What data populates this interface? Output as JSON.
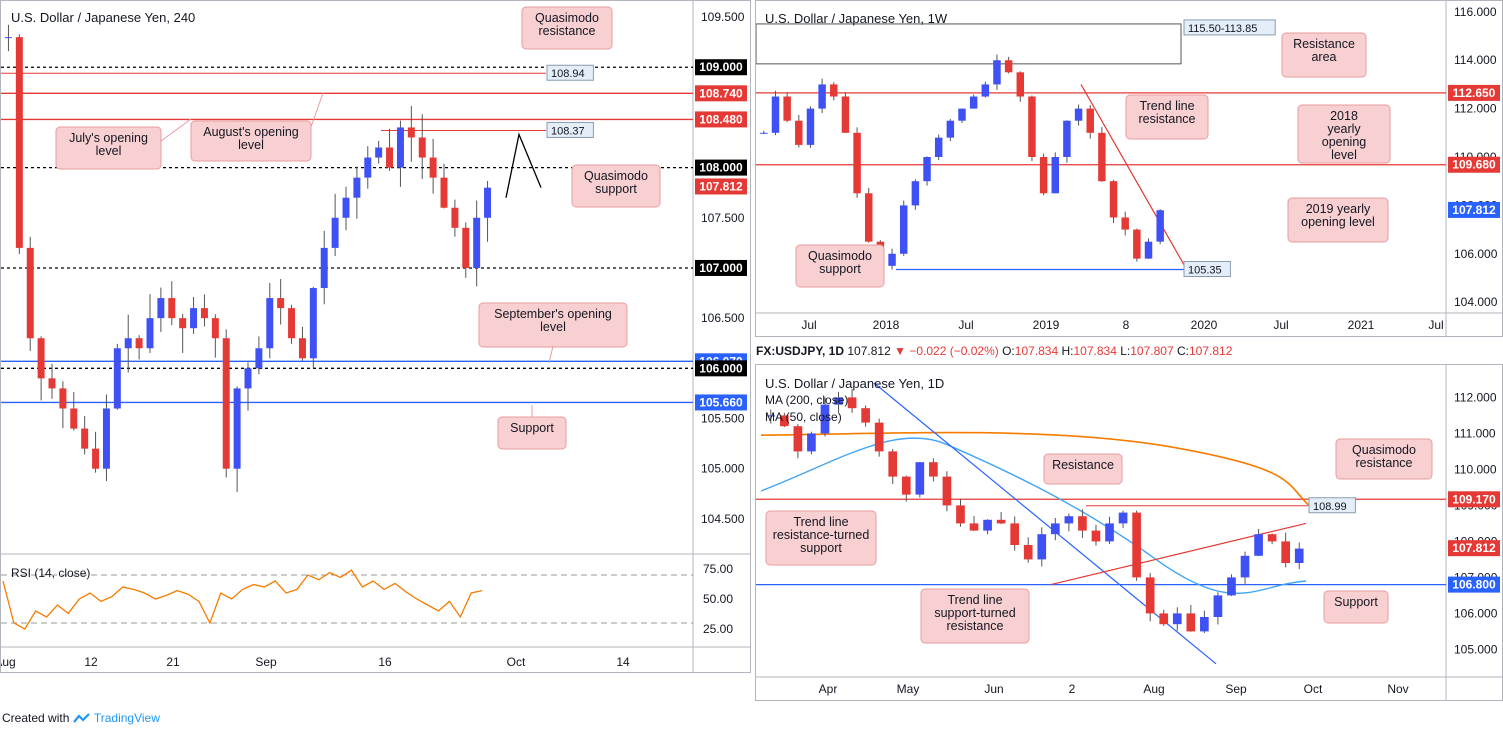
{
  "footer": {
    "created_with": "Created with",
    "brand": "TradingView"
  },
  "charts": {
    "h4": {
      "title": "U.S. Dollar / Japanese Yen, 240",
      "y_ticks": [
        "109.500",
        "109.000",
        "108.500",
        "108.000",
        "107.500",
        "107.000",
        "106.500",
        "106.000",
        "105.500",
        "105.000",
        "104.500"
      ],
      "x_ticks": [
        "Aug",
        "12",
        "21",
        "Sep",
        "16",
        "Oct",
        "14"
      ],
      "price_badges": [
        {
          "label": "109.000",
          "color": "#000000"
        },
        {
          "label": "108.740",
          "color": "#e53935"
        },
        {
          "label": "108.480",
          "color": "#e53935"
        },
        {
          "label": "108.000",
          "color": "#000000"
        },
        {
          "label": "107.812",
          "color": "#e53935"
        },
        {
          "label": "107.000",
          "color": "#000000"
        },
        {
          "label": "106.070",
          "color": "#2962ff"
        },
        {
          "label": "106.000",
          "color": "#000000"
        },
        {
          "label": "105.660",
          "color": "#2962ff"
        }
      ],
      "inline_labels": [
        "108.94",
        "108.37"
      ],
      "annotations": {
        "qm_resistance": "Quasimodo resistance",
        "july_open": "July's opening level",
        "aug_open": "August's opening level",
        "qm_support": "Quasimodo support",
        "sept_open": "September's opening level",
        "support": "Support"
      },
      "rsi": {
        "title": "RSI (14, close)",
        "ticks": [
          "75.00",
          "50.00",
          "25.00"
        ]
      }
    },
    "w1": {
      "title": "U.S. Dollar / Japanese Yen, 1W",
      "y_ticks": [
        "116.000",
        "114.000",
        "112.000",
        "110.000",
        "108.000",
        "106.000",
        "104.000"
      ],
      "x_ticks": [
        "Jul",
        "2018",
        "Jul",
        "2019",
        "8",
        "2020",
        "Jul",
        "2021",
        "Jul"
      ],
      "price_badges": [
        {
          "label": "112.650",
          "color": "#e53935"
        },
        {
          "label": "109.680",
          "color": "#e53935"
        },
        {
          "label": "107.812",
          "color": "#2962ff"
        }
      ],
      "inline_labels": [
        "115.50-113.85",
        "105.35"
      ],
      "annotations": {
        "resistance_area": "Resistance area",
        "trendline_res": "Trend line resistance",
        "y2018": "2018 yearly opening level",
        "y2019": "2019 yearly opening level",
        "qm_support": "Quasimodo support"
      }
    },
    "d1": {
      "title": "U.S. Dollar / Japanese Yen, 1D",
      "ma200": "MA (200, close)",
      "ma50": "MA (50, close)",
      "y_ticks": [
        "112.000",
        "111.000",
        "110.000",
        "109.000",
        "108.000",
        "107.000",
        "106.000",
        "105.000"
      ],
      "x_ticks": [
        "Apr",
        "May",
        "Jun",
        "2",
        "Aug",
        "Sep",
        "Oct",
        "Nov"
      ],
      "price_badges": [
        {
          "label": "109.170",
          "color": "#e53935"
        },
        {
          "label": "107.812",
          "color": "#e53935"
        },
        {
          "label": "106.800",
          "color": "#2962ff"
        }
      ],
      "inline_labels": [
        "108.99"
      ],
      "annotations": {
        "qm_resistance": "Quasimodo resistance",
        "resistance": "Resistance",
        "tl_res_sup": "Trend line resistance-turned support",
        "tl_sup_res": "Trend line support-turned resistance",
        "support": "Support"
      }
    }
  },
  "ohlc": {
    "symbol": "FX:USDJPY, 1D",
    "last": "107.812",
    "change": "−0.022 (−0.02%)",
    "open_label": "O:",
    "open": "107.834",
    "high_label": "H:",
    "high": "107.834",
    "low_label": "L:",
    "low": "107.807",
    "close_label": "C:",
    "close": "107.812"
  },
  "chart_data": [
    {
      "type": "candlestick",
      "title": "U.S. Dollar / Japanese Yen, 240",
      "ylim": [
        104.2,
        109.6
      ],
      "horizontal_levels": [
        109.0,
        108.94,
        108.74,
        108.48,
        108.37,
        108.0,
        107.0,
        106.07,
        106.0,
        105.66
      ],
      "last_price": 107.812,
      "close_series": [
        109.3,
        107.2,
        106.3,
        105.9,
        105.8,
        105.6,
        105.4,
        105.2,
        105.0,
        105.6,
        106.2,
        106.3,
        106.2,
        106.5,
        106.7,
        106.5,
        106.4,
        106.6,
        106.5,
        106.3,
        105.0,
        105.8,
        106.0,
        106.2,
        106.7,
        106.6,
        106.3,
        106.1,
        106.8,
        107.2,
        107.5,
        107.7,
        107.9,
        108.1,
        108.2,
        108.0,
        108.4,
        108.3,
        108.1,
        107.9,
        107.6,
        107.4,
        107.0,
        107.5,
        107.8
      ]
    },
    {
      "type": "candlestick",
      "title": "U.S. Dollar / Japanese Yen, 1W",
      "ylim": [
        103.8,
        116.2
      ],
      "horizontal_levels": [
        112.65,
        109.68,
        105.35
      ],
      "zone": [
        113.85,
        115.5
      ],
      "last_price": 107.812,
      "close_series": [
        111.0,
        112.5,
        111.5,
        110.5,
        112.0,
        113.0,
        112.5,
        111.0,
        108.5,
        106.5,
        105.5,
        106.0,
        108.0,
        109.0,
        110.0,
        110.8,
        111.5,
        112.0,
        112.5,
        113.0,
        114.0,
        113.5,
        112.5,
        110.0,
        108.5,
        110.0,
        111.5,
        112.0,
        111.0,
        109.0,
        107.5,
        107.0,
        105.8,
        106.5,
        107.8
      ]
    },
    {
      "type": "candlestick",
      "title": "U.S. Dollar / Japanese Yen, 1D",
      "ylim": [
        104.4,
        112.4
      ],
      "horizontal_levels": [
        109.17,
        108.99,
        106.8
      ],
      "last_price": 107.812,
      "series": [
        {
          "name": "MA (200, close)",
          "color": "#f57c00"
        },
        {
          "name": "MA (50, close)",
          "color": "#42a5f5"
        }
      ],
      "close_series": [
        111.5,
        111.2,
        110.5,
        111.0,
        111.8,
        112.0,
        111.7,
        111.3,
        110.5,
        109.8,
        109.3,
        110.2,
        109.8,
        109.0,
        108.5,
        108.3,
        108.6,
        108.5,
        107.9,
        107.5,
        108.2,
        108.5,
        108.7,
        108.3,
        108.0,
        108.5,
        108.8,
        107.0,
        106.0,
        105.7,
        106.0,
        105.5,
        105.9,
        106.5,
        107.0,
        107.6,
        108.2,
        108.0,
        107.4,
        107.8
      ]
    }
  ]
}
